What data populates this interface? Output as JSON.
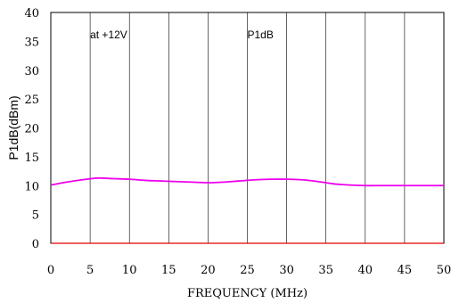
{
  "chart_data": {
    "type": "line",
    "title": "",
    "xlabel": "FREQUENCY (MHz)",
    "ylabel": "P1dB(dBm)",
    "xlim": [
      0,
      50
    ],
    "ylim": [
      0,
      40
    ],
    "x_ticks": [
      0,
      5,
      10,
      15,
      20,
      25,
      30,
      35,
      40,
      45,
      50
    ],
    "y_ticks": [
      0,
      5,
      10,
      15,
      20,
      25,
      30,
      35,
      40
    ],
    "grid": "vertical",
    "colors": {
      "series": "#ee00ee",
      "grid": "#000000",
      "axis": "#000000",
      "baseline": "#e00000"
    },
    "annotations": [
      {
        "text": "at +12V",
        "x": 5,
        "y": 35.5
      },
      {
        "text": "P1dB",
        "x": 25,
        "y": 35.5
      }
    ],
    "series": [
      {
        "x": [
          0,
          2,
          4,
          6,
          8,
          10,
          12,
          14,
          16,
          18,
          20,
          22,
          24,
          26,
          28,
          30,
          32,
          34,
          36,
          38,
          40,
          42,
          44,
          46,
          48,
          50
        ],
        "y": [
          10.1,
          10.6,
          11.0,
          11.3,
          11.2,
          11.1,
          10.9,
          10.8,
          10.7,
          10.6,
          10.5,
          10.6,
          10.8,
          11.0,
          11.1,
          11.1,
          11.0,
          10.7,
          10.3,
          10.1,
          10.0,
          10.0,
          10.0,
          10.0,
          10.0,
          10.0
        ]
      }
    ]
  }
}
